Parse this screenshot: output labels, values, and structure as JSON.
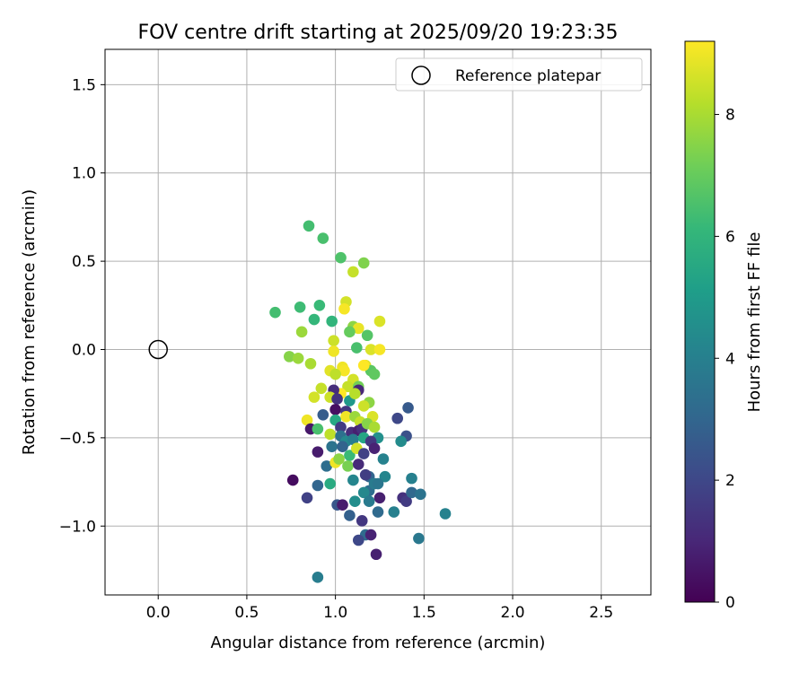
{
  "chart_data": {
    "type": "scatter",
    "title": "FOV centre drift starting at 2025/09/20 19:23:35",
    "xlabel": "Angular distance from reference (arcmin)",
    "ylabel": "Rotation from reference (arcmin)",
    "xlim": [
      -0.3,
      2.78
    ],
    "ylim": [
      -1.39,
      1.7
    ],
    "xticks": [
      0.0,
      0.5,
      1.0,
      1.5,
      2.0,
      2.5
    ],
    "xtick_labels": [
      "0.0",
      "0.5",
      "1.0",
      "1.5",
      "2.0",
      "2.5"
    ],
    "yticks": [
      1.5,
      1.0,
      0.5,
      0.0,
      -0.5,
      -1.0
    ],
    "ytick_labels": [
      "1.5",
      "1.0",
      "0.5",
      "0.0",
      "−0.5",
      "−1.0"
    ],
    "grid": true,
    "legend": {
      "location": "top-right",
      "entries": [
        "Reference platepar"
      ]
    },
    "reference": {
      "x": 0.0,
      "y": 0.0
    },
    "colorbar": {
      "label": "Hours from first FF file",
      "range": [
        0,
        9.2
      ],
      "ticks": [
        0,
        2,
        4,
        6,
        8
      ],
      "tick_labels": [
        "0",
        "2",
        "4",
        "6",
        "8"
      ],
      "colormap": "viridis"
    },
    "colormap_stops": [
      "#440154",
      "#482878",
      "#3e4989",
      "#31688e",
      "#26828e",
      "#1f9e89",
      "#35b779",
      "#6ece58",
      "#b5de2b",
      "#fde725"
    ],
    "series": [
      {
        "name": "FOV centre",
        "points": [
          [
            0.85,
            0.7,
            6.4
          ],
          [
            0.93,
            0.63,
            6.5
          ],
          [
            1.03,
            0.52,
            6.6
          ],
          [
            1.16,
            0.49,
            7.4
          ],
          [
            1.1,
            0.44,
            8.4
          ],
          [
            1.06,
            0.27,
            8.6
          ],
          [
            1.05,
            0.23,
            9.1
          ],
          [
            0.66,
            0.21,
            6.4
          ],
          [
            0.8,
            0.24,
            6.3
          ],
          [
            0.91,
            0.25,
            6.2
          ],
          [
            0.88,
            0.17,
            6.1
          ],
          [
            0.98,
            0.16,
            6.0
          ],
          [
            1.25,
            0.16,
            8.7
          ],
          [
            1.1,
            0.13,
            7.6
          ],
          [
            1.13,
            0.12,
            8.9
          ],
          [
            1.08,
            0.1,
            7.0
          ],
          [
            1.18,
            0.08,
            6.7
          ],
          [
            0.81,
            0.1,
            7.8
          ],
          [
            0.99,
            0.05,
            8.5
          ],
          [
            1.12,
            0.01,
            6.5
          ],
          [
            1.2,
            0.0,
            8.7
          ],
          [
            1.25,
            0.0,
            9.1
          ],
          [
            0.99,
            -0.01,
            9.0
          ],
          [
            0.74,
            -0.04,
            7.5
          ],
          [
            0.79,
            -0.05,
            7.8
          ],
          [
            0.86,
            -0.08,
            8.0
          ],
          [
            0.97,
            -0.12,
            8.8
          ],
          [
            1.04,
            -0.1,
            9.0
          ],
          [
            1.05,
            -0.12,
            9.1
          ],
          [
            1.17,
            -0.09,
            8.8
          ],
          [
            1.2,
            -0.12,
            6.8
          ],
          [
            1.22,
            -0.14,
            6.9
          ],
          [
            1.16,
            -0.09,
            9.2
          ],
          [
            1.0,
            -0.14,
            8.3
          ],
          [
            1.1,
            -0.17,
            8.6
          ],
          [
            1.07,
            -0.21,
            8.4
          ],
          [
            1.13,
            -0.21,
            7.2
          ],
          [
            1.03,
            -0.25,
            9.2
          ],
          [
            0.92,
            -0.22,
            8.4
          ],
          [
            0.99,
            -0.23,
            1.2
          ],
          [
            1.13,
            -0.23,
            1.0
          ],
          [
            0.88,
            -0.27,
            8.6
          ],
          [
            0.97,
            -0.27,
            8.5
          ],
          [
            1.01,
            -0.28,
            1.4
          ],
          [
            1.08,
            -0.29,
            4.9
          ],
          [
            1.11,
            -0.25,
            8.2
          ],
          [
            1.19,
            -0.3,
            7.6
          ],
          [
            1.16,
            -0.32,
            8.5
          ],
          [
            1.0,
            -0.34,
            0.4
          ],
          [
            1.06,
            -0.35,
            1.5
          ],
          [
            0.93,
            -0.37,
            2.7
          ],
          [
            1.06,
            -0.38,
            9.0
          ],
          [
            1.11,
            -0.38,
            7.8
          ],
          [
            1.14,
            -0.41,
            8.4
          ],
          [
            1.21,
            -0.38,
            8.7
          ],
          [
            1.35,
            -0.39,
            2.0
          ],
          [
            1.41,
            -0.33,
            2.6
          ],
          [
            0.84,
            -0.4,
            9.0
          ],
          [
            0.86,
            -0.45,
            0.6
          ],
          [
            0.9,
            -0.45,
            6.5
          ],
          [
            1.0,
            -0.4,
            5.5
          ],
          [
            1.03,
            -0.44,
            1.6
          ],
          [
            1.09,
            -0.47,
            1.2
          ],
          [
            1.13,
            -0.46,
            0.8
          ],
          [
            1.15,
            -0.45,
            1.3
          ],
          [
            1.18,
            -0.42,
            7.5
          ],
          [
            1.22,
            -0.44,
            8.0
          ],
          [
            1.24,
            -0.5,
            4.6
          ],
          [
            1.4,
            -0.49,
            2.3
          ],
          [
            1.37,
            -0.52,
            4.4
          ],
          [
            0.97,
            -0.48,
            8.3
          ],
          [
            1.03,
            -0.49,
            3.4
          ],
          [
            1.06,
            -0.52,
            4.3
          ],
          [
            1.1,
            -0.51,
            3.9
          ],
          [
            1.16,
            -0.5,
            5.4
          ],
          [
            1.2,
            -0.52,
            1.5
          ],
          [
            0.9,
            -0.58,
            0.7
          ],
          [
            0.98,
            -0.55,
            3.5
          ],
          [
            1.04,
            -0.55,
            2.9
          ],
          [
            1.08,
            -0.6,
            6.2
          ],
          [
            1.12,
            -0.56,
            8.6
          ],
          [
            1.16,
            -0.59,
            1.8
          ],
          [
            1.22,
            -0.56,
            0.9
          ],
          [
            1.27,
            -0.62,
            4.1
          ],
          [
            0.95,
            -0.66,
            3.3
          ],
          [
            1.0,
            -0.64,
            9.0
          ],
          [
            1.02,
            -0.62,
            7.6
          ],
          [
            1.07,
            -0.66,
            7.3
          ],
          [
            1.13,
            -0.65,
            1.1
          ],
          [
            1.19,
            -0.72,
            3.0
          ],
          [
            1.28,
            -0.72,
            4.2
          ],
          [
            1.43,
            -0.73,
            4.0
          ],
          [
            0.76,
            -0.74,
            0.3
          ],
          [
            0.9,
            -0.77,
            3.0
          ],
          [
            0.97,
            -0.76,
            5.6
          ],
          [
            1.1,
            -0.74,
            4.2
          ],
          [
            1.17,
            -0.71,
            1.7
          ],
          [
            1.19,
            -0.8,
            3.3
          ],
          [
            1.22,
            -0.76,
            3.8
          ],
          [
            1.24,
            -0.76,
            3.6
          ],
          [
            1.25,
            -0.84,
            0.8
          ],
          [
            1.38,
            -0.84,
            1.3
          ],
          [
            1.4,
            -0.86,
            1.6
          ],
          [
            1.43,
            -0.81,
            3.1
          ],
          [
            1.48,
            -0.82,
            3.5
          ],
          [
            0.84,
            -0.84,
            1.8
          ],
          [
            1.01,
            -0.88,
            2.5
          ],
          [
            1.04,
            -0.88,
            0.7
          ],
          [
            1.11,
            -0.86,
            4.5
          ],
          [
            1.16,
            -0.81,
            4.3
          ],
          [
            1.19,
            -0.86,
            3.8
          ],
          [
            1.24,
            -0.92,
            3.2
          ],
          [
            1.33,
            -0.92,
            4.0
          ],
          [
            1.62,
            -0.93,
            4.1
          ],
          [
            1.08,
            -0.94,
            2.8
          ],
          [
            1.15,
            -0.97,
            1.5
          ],
          [
            1.17,
            -1.05,
            3.2
          ],
          [
            1.2,
            -1.05,
            0.9
          ],
          [
            1.13,
            -1.08,
            2.0
          ],
          [
            1.47,
            -1.07,
            3.7
          ],
          [
            1.23,
            -1.16,
            0.8
          ],
          [
            0.9,
            -1.29,
            3.9
          ]
        ]
      }
    ]
  }
}
